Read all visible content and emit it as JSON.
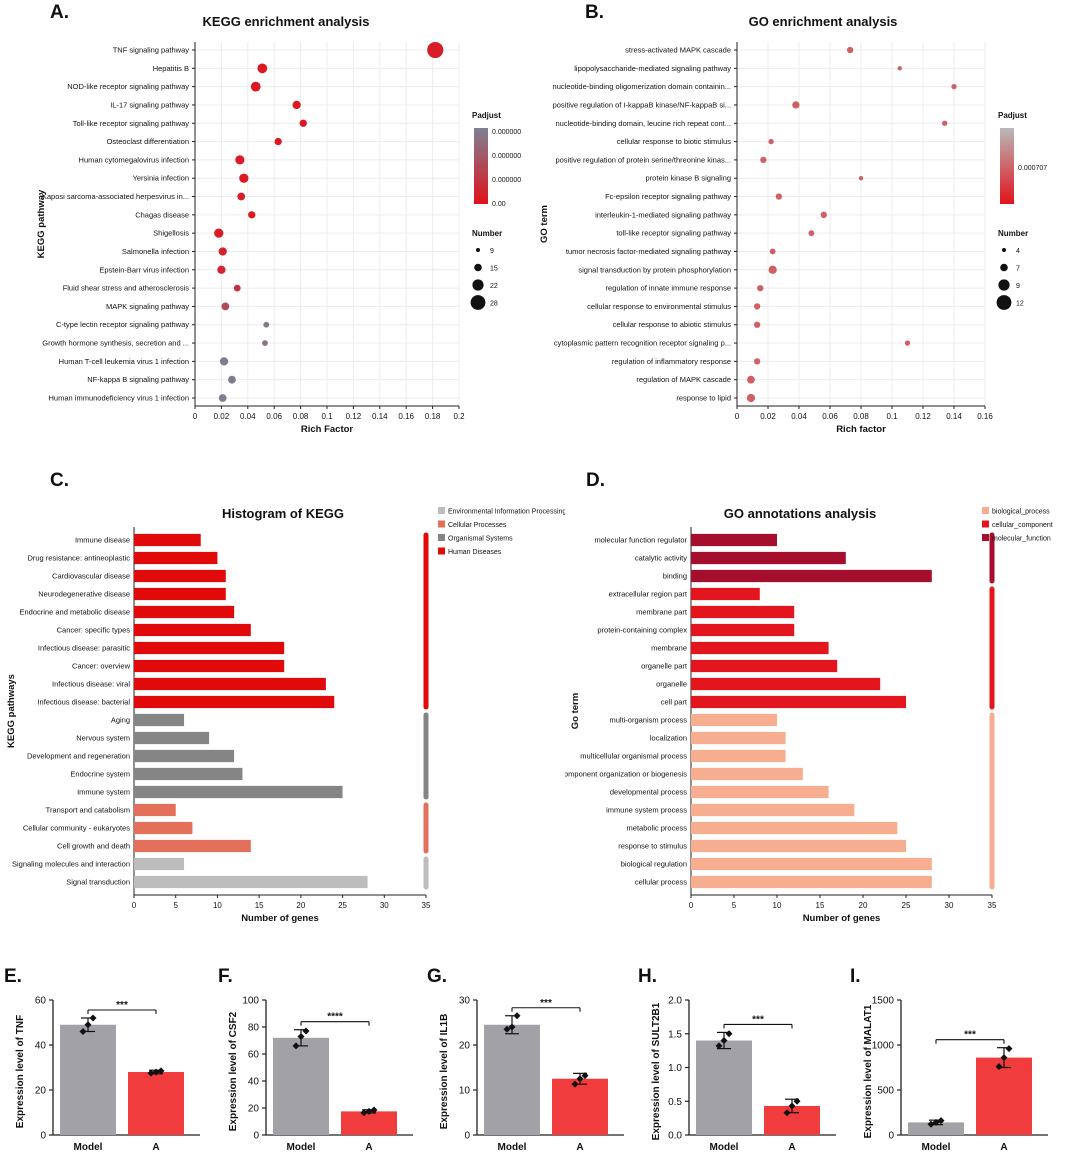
{
  "panels": {
    "A": {
      "label": "A.",
      "chart_data": {
        "type": "scatter",
        "title": "KEGG enrichment analysis",
        "xlabel": "Rich Factor",
        "ylabel": "KEGG pathway",
        "xlim": [
          0,
          0.2
        ],
        "xticks": [
          "0",
          "0.02",
          "0.04",
          "0.06",
          "0.08",
          "0.1",
          "0.12",
          "0.14",
          "0.16",
          "0.18",
          "0.2"
        ],
        "categories": [
          "TNF signaling pathway",
          "Hepatitis B",
          "NOD-like receptor signaling pathway",
          "IL-17 signaling pathway",
          "Toll-like receptor signaling pathway",
          "Osteoclast differentiation",
          "Human cytomegalovirus infection",
          "Yersinia infection",
          "Kaposi sarcoma-associated herpesvirus in...",
          "Chagas disease",
          "Shigellosis",
          "Salmonella infection",
          "Epstein-Barr virus infection",
          "Fluid shear stress and atherosclerosis",
          "MAPK signaling pathway",
          "C-type lectin receptor signaling pathway",
          "Growth hormone synthesis, secretion and ...",
          "Human T-cell leukemia virus 1 infection",
          "NF-kappa B signaling pathway",
          "Human immunodeficiency virus 1 infection"
        ],
        "rich_factor": [
          0.182,
          0.051,
          0.046,
          0.077,
          0.082,
          0.063,
          0.034,
          0.037,
          0.035,
          0.043,
          0.018,
          0.021,
          0.02,
          0.032,
          0.023,
          0.054,
          0.053,
          0.022,
          0.028,
          0.021
        ],
        "number": [
          28,
          15,
          15,
          12,
          10,
          10,
          14,
          14,
          11,
          10,
          14,
          12,
          12,
          9,
          11,
          7,
          7,
          12,
          11,
          11
        ],
        "padj_level": [
          0.9,
          0.95,
          0.95,
          0.95,
          0.97,
          0.95,
          0.9,
          0.95,
          0.9,
          0.95,
          0.9,
          0.85,
          0.8,
          0.7,
          0.5,
          0.1,
          0.1,
          0.05,
          0.05,
          0.02
        ],
        "legend_color_title": "Padjust",
        "legend_color_ticks": [
          "0.000000",
          "0.000000",
          "0.000000",
          "0.00"
        ],
        "legend_size_title": "Number",
        "legend_size_values": [
          "9",
          "15",
          "22",
          "28"
        ],
        "colors": {
          "low": "#e1121b",
          "high": "#7d8194"
        }
      }
    },
    "B": {
      "label": "B.",
      "chart_data": {
        "type": "scatter",
        "title": "GO enrichment analysis",
        "xlabel": "Rich factor",
        "ylabel": "GO term",
        "xlim": [
          0,
          0.16
        ],
        "xticks": [
          "0",
          "0.02",
          "0.04",
          "0.06",
          "0.08",
          "0.1",
          "0.12",
          "0.14",
          "0.16"
        ],
        "categories": [
          "stress-activated MAPK cascade",
          "lipopolysaccharide-mediated signaling pathway",
          "nucleotide-binding oligomerization domain containin...",
          "positive regulation of I-kappaB kinase/NF-kappaB si...",
          "nucleotide-binding domain, leucine rich repeat cont...",
          "cellular response to biotic stimulus",
          "positive regulation of protein serine/threonine kinas...",
          "protein kinase B signaling",
          "Fc-epsilon receptor signaling pathway",
          "interleukin-1-mediated signaling pathway",
          "toll-like receptor signaling pathway",
          "tumor necrosis factor-mediated signaling pathway",
          "signal transduction by protein phosphorylation",
          "regulation of innate immune response",
          "cellular response to environmental stimulus",
          "cellular response to abiotic stimulus",
          "cytoplasmic pattern recognition receptor signaling p...",
          "regulation of inflammatory response",
          "regulation of MAPK cascade",
          "response to lipid"
        ],
        "rich_factor": [
          0.073,
          0.105,
          0.14,
          0.038,
          0.134,
          0.022,
          0.017,
          0.08,
          0.027,
          0.056,
          0.048,
          0.023,
          0.023,
          0.015,
          0.013,
          0.013,
          0.11,
          0.013,
          0.009,
          0.009
        ],
        "number": [
          8,
          4,
          6,
          10,
          6,
          6,
          8,
          4,
          8,
          8,
          7,
          7,
          12,
          8,
          8,
          8,
          6,
          8,
          11,
          12
        ],
        "legend_color_title": "Padjust",
        "legend_color_ticks": [
          "0.000707"
        ],
        "legend_size_title": "Number",
        "legend_size_values": [
          "4",
          "7",
          "9",
          "12"
        ],
        "colors": {
          "low": "#e1121b",
          "high": "#b9b9b9",
          "point": "#cf6065"
        }
      }
    },
    "C": {
      "label": "C.",
      "chart_data": {
        "type": "bar",
        "orientation": "horizontal",
        "title": "Histogram of KEGG",
        "xlabel": "Number of genes",
        "ylabel": "KEGG pathways",
        "xlim": [
          0,
          35
        ],
        "xticks": [
          "0",
          "5",
          "10",
          "15",
          "20",
          "25",
          "30",
          "35"
        ],
        "categories": [
          "Immune disease",
          "Drug resistance: antineoplastic",
          "Cardiovascular disease",
          "Neurodegenerative disease",
          "Endocrine and metabolic disease",
          "Cancer: specific types",
          "Infectious disease: parasitic",
          "Cancer: overview",
          "Infectious disease: viral",
          "Infectious disease: bacterial",
          "Aging",
          "Nervous system",
          "Development and regeneration",
          "Endocrine system",
          "Immune system",
          "Transport and catabolism",
          "Cellular community - eukaryotes",
          "Cell growth and death",
          "Signaling molecules and interaction",
          "Signal transduction"
        ],
        "values": [
          8,
          10,
          11,
          11,
          12,
          14,
          18,
          18,
          23,
          24,
          6,
          9,
          12,
          13,
          25,
          5,
          7,
          14,
          6,
          28
        ],
        "groups": [
          3,
          3,
          3,
          3,
          3,
          3,
          3,
          3,
          3,
          3,
          2,
          2,
          2,
          2,
          2,
          1,
          1,
          1,
          0,
          0
        ],
        "legend": [
          "Environmental Information Processing",
          "Cellular Processes",
          "Organismal Systems",
          "Human Diseases"
        ],
        "group_colors": [
          "#bdbdbd",
          "#e46f5a",
          "#858585",
          "#e00a0a"
        ]
      }
    },
    "D": {
      "label": "D.",
      "chart_data": {
        "type": "bar",
        "orientation": "horizontal",
        "title": "GO annotations analysis",
        "xlabel": "Number of genes",
        "ylabel": "Go term",
        "xlim": [
          0,
          35
        ],
        "xticks": [
          "0",
          "5",
          "10",
          "15",
          "20",
          "25",
          "30",
          "35"
        ],
        "categories": [
          "molecular function regulator",
          "catalytic activity",
          "binding",
          "extracellular region part",
          "membrane part",
          "protein-containing complex",
          "membrane",
          "organelle part",
          "organelle",
          "cell part",
          "multi-organism process",
          "localization",
          "multicellular organismal process",
          "ar component organization or biogenesis",
          "developmental process",
          "immune system process",
          "metabolic process",
          "response to stimulus",
          "biological regulation",
          "cellular process"
        ],
        "values": [
          10,
          18,
          28,
          8,
          12,
          12,
          16,
          17,
          22,
          25,
          10,
          11,
          11,
          13,
          16,
          19,
          24,
          25,
          28,
          28
        ],
        "groups": [
          2,
          2,
          2,
          1,
          1,
          1,
          1,
          1,
          1,
          1,
          0,
          0,
          0,
          0,
          0,
          0,
          0,
          0,
          0,
          0
        ],
        "legend": [
          "biological_process",
          "cellular_component",
          "molecular_function"
        ],
        "group_colors": [
          "#f7ad90",
          "#e3151f",
          "#a50f2d"
        ]
      }
    },
    "E": {
      "label": "E.",
      "chart_data": {
        "type": "bar",
        "categories": [
          "Model",
          "A"
        ],
        "values": [
          49,
          28
        ],
        "points": [
          [
            46,
            49,
            52
          ],
          [
            27.5,
            28,
            28.5
          ]
        ],
        "errors": [
          3,
          0.8
        ],
        "ylabel": "Expression level of TNF",
        "ylim": [
          0,
          60
        ],
        "yticks": [
          "0",
          "20",
          "40",
          "60"
        ],
        "sig": "***"
      }
    },
    "F": {
      "label": "F.",
      "chart_data": {
        "type": "bar",
        "categories": [
          "Model",
          "A"
        ],
        "values": [
          72,
          17.5
        ],
        "points": [
          [
            66,
            73,
            77
          ],
          [
            16.5,
            17.5,
            18.5
          ]
        ],
        "errors": [
          6,
          1.2
        ],
        "ylabel": "Expression level of CSF2",
        "ylim": [
          0,
          100
        ],
        "yticks": [
          "0",
          "20",
          "40",
          "60",
          "80",
          "100"
        ],
        "sig": "****"
      }
    },
    "G": {
      "label": "G.",
      "chart_data": {
        "type": "bar",
        "categories": [
          "Model",
          "A"
        ],
        "values": [
          24.5,
          12.5
        ],
        "points": [
          [
            23.5,
            24,
            26.5
          ],
          [
            11.3,
            12.5,
            13.2
          ]
        ],
        "errors": [
          2,
          1.2
        ],
        "ylabel": "Expression level of IL1B",
        "ylim": [
          0,
          30
        ],
        "yticks": [
          "0",
          "10",
          "20",
          "30"
        ],
        "sig": "***"
      }
    },
    "H": {
      "label": "H.",
      "chart_data": {
        "type": "bar",
        "categories": [
          "Model",
          "A"
        ],
        "values": [
          1.4,
          0.43
        ],
        "points": [
          [
            1.32,
            1.4,
            1.5
          ],
          [
            0.33,
            0.43,
            0.5
          ]
        ],
        "errors": [
          0.12,
          0.1
        ],
        "ylabel": "Expression level of SULT2B1",
        "ylim": [
          0,
          2.0
        ],
        "yticks": [
          "0.0",
          "0.5",
          "1.0",
          "1.5",
          "2.0"
        ],
        "sig": "***"
      }
    },
    "I": {
      "label": "I.",
      "chart_data": {
        "type": "bar",
        "categories": [
          "Model",
          "A"
        ],
        "values": [
          140,
          860
        ],
        "points": [
          [
            120,
            140,
            160
          ],
          [
            760,
            860,
            960
          ]
        ],
        "errors": [
          25,
          110
        ],
        "ylabel": "Expression level of MALAT1",
        "ylim": [
          0,
          1500
        ],
        "yticks": [
          "0",
          "500",
          "1000",
          "1500"
        ],
        "sig": "***"
      }
    }
  }
}
